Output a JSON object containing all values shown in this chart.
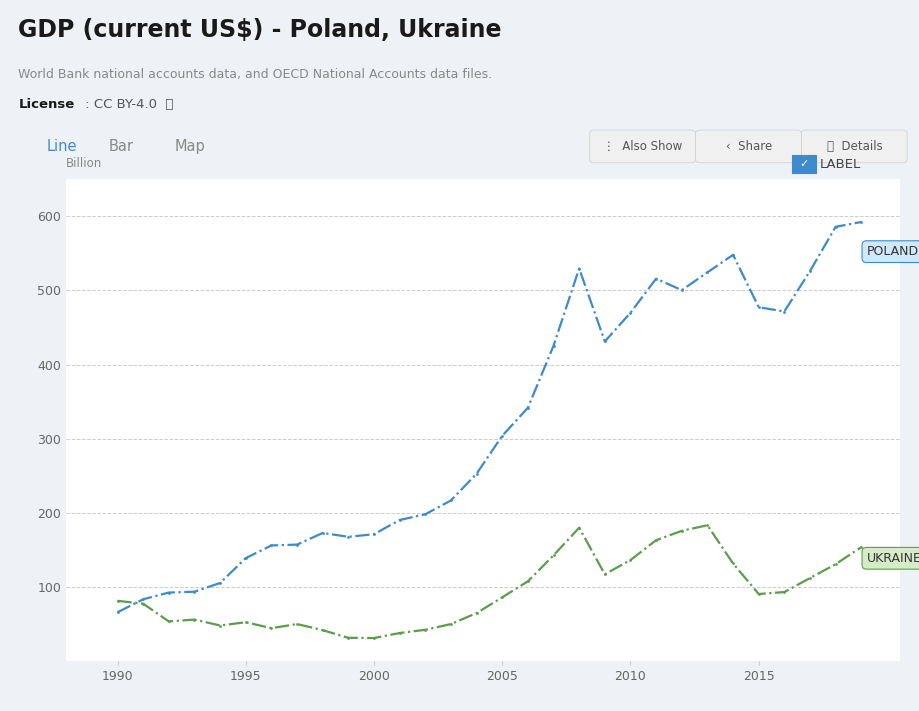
{
  "title": "GDP (current US$) - Poland, Ukraine",
  "subtitle": "World Bank national accounts data, and OECD National Accounts data files.",
  "license_bold": "License",
  "license_normal": " : CC BY-4.0  ⓘ",
  "tab_line": "Line",
  "tab_bar": "Bar",
  "tab_map": "Map",
  "btn_alsoshow": "⋮  Also Show",
  "btn_share": "‹  Share",
  "btn_details": "ⓘ  Details",
  "ylabel": "Billion",
  "label_text": "LABEL",
  "years": [
    1990,
    1991,
    1992,
    1993,
    1994,
    1995,
    1996,
    1997,
    1998,
    1999,
    2000,
    2001,
    2002,
    2003,
    2004,
    2005,
    2006,
    2007,
    2008,
    2009,
    2010,
    2011,
    2012,
    2013,
    2014,
    2015,
    2016,
    2017,
    2018,
    2019
  ],
  "poland_gdp": [
    65.98,
    83.53,
    92.58,
    93.74,
    105.54,
    139.07,
    156.08,
    157.22,
    172.91,
    167.72,
    171.27,
    190.38,
    198.09,
    216.75,
    252.77,
    303.91,
    341.67,
    425.32,
    529.44,
    431.08,
    469.78,
    515.78,
    500.26,
    524.21,
    547.89,
    477.31,
    471.47,
    526.02,
    585.66,
    592.16
  ],
  "ukraine_gdp": [
    81.46,
    77.54,
    53.69,
    56.16,
    48.16,
    52.58,
    44.56,
    50.15,
    41.88,
    31.58,
    31.26,
    38.01,
    42.39,
    50.13,
    64.88,
    86.14,
    107.75,
    142.71,
    179.99,
    117.23,
    136.42,
    163.16,
    175.78,
    183.31,
    131.81,
    90.62,
    93.27,
    112.15,
    130.83,
    153.78
  ],
  "poland_color": "#3d8bcd",
  "ukraine_color": "#5a9e4a",
  "bg_top": "#eef2f6",
  "bg_chart": "#ffffff",
  "bg_tab_panel": "#ffffff",
  "grid_color": "#cccccc",
  "ylim": [
    0,
    650
  ],
  "yticks": [
    0,
    100,
    200,
    300,
    400,
    500,
    600
  ],
  "xtick_years": [
    1990,
    1995,
    2000,
    2005,
    2010,
    2015
  ],
  "poland_label": "POLAND",
  "ukraine_label": "UKRAINE",
  "poland_label_bg": "#d0e8f8",
  "ukraine_label_bg": "#d6ecc8",
  "poland_label_border": "#3d8bcd",
  "ukraine_label_border": "#5a9e4a",
  "checkbox_color": "#3d8bcd"
}
